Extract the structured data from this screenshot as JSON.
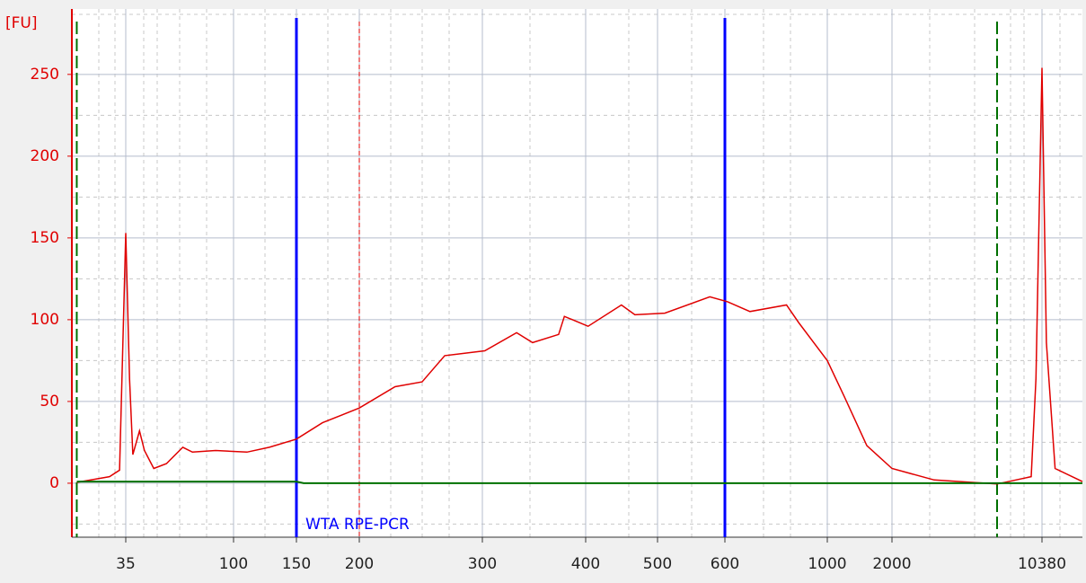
{
  "chart_data": {
    "type": "line",
    "y_label": "[FU]",
    "x": [
      22,
      30,
      33,
      35,
      36.3,
      37.5,
      40,
      42,
      46,
      52,
      61,
      67,
      84,
      109,
      126,
      150,
      169,
      200,
      225,
      246,
      265,
      302,
      330,
      345,
      371,
      377,
      403,
      447,
      466,
      510,
      576,
      608,
      680,
      816,
      868,
      1000,
      1200,
      1527,
      2000,
      3180,
      6340,
      9220,
      9720,
      10380,
      10880,
      11950,
      16000
    ],
    "series": [
      {
        "color": "#e00000",
        "values": [
          0.5,
          4,
          8,
          153,
          64,
          17.5,
          32,
          20,
          9,
          12,
          22,
          19,
          20,
          19,
          22,
          27,
          37,
          46,
          59,
          62,
          78,
          81,
          92,
          86,
          91,
          102,
          96,
          109,
          103,
          104,
          114,
          111,
          105,
          109,
          98,
          75,
          53,
          23,
          9,
          2,
          -0.5,
          4,
          64,
          254,
          86,
          9,
          1
        ]
      },
      {
        "color": "#007000",
        "x": [
          22,
          150,
          155,
          16000
        ],
        "values": [
          1,
          1,
          0,
          0
        ]
      }
    ],
    "xlim": [
      21,
      16000
    ],
    "xticks": [
      35,
      100,
      150,
      200,
      300,
      400,
      500,
      600,
      1000,
      2000,
      10380
    ],
    "ylim": [
      -33,
      290
    ],
    "yticks": [
      0,
      50,
      100,
      150,
      200,
      250
    ],
    "grid": true,
    "region": {
      "from": 150,
      "to": 600,
      "label": "WTA RPE-PCR",
      "color": "#0000ff"
    },
    "cursor": {
      "x": 200,
      "color": "#e00000"
    },
    "limits": {
      "x": [
        22,
        6340
      ],
      "color": "#007000"
    }
  }
}
